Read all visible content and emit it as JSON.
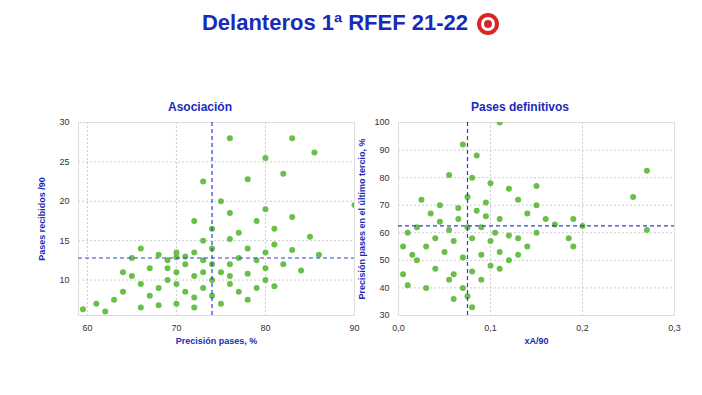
{
  "title": "Delanteros 1ª RFEF 21-22",
  "chart_data": [
    {
      "type": "scatter",
      "title": "Asociación",
      "x_label": "Precisión pases, %",
      "y_label": "Pases recibidos /90",
      "color": "#6abf4b",
      "grid": true,
      "xlim": [
        59,
        90
      ],
      "ylim": [
        5.5,
        30
      ],
      "xticks": [
        60,
        70,
        80,
        90
      ],
      "yticks": [
        10,
        15,
        20,
        25,
        30
      ],
      "x_reference": 74,
      "y_reference": 12.8,
      "x": [
        80,
        83,
        85.5,
        76,
        78,
        90,
        73,
        75,
        82,
        72,
        74,
        76,
        74,
        78,
        80,
        81,
        83,
        86,
        79,
        77,
        72,
        71,
        70,
        68,
        66,
        69,
        70,
        72,
        73,
        74,
        75,
        76,
        78,
        80,
        82,
        84,
        80,
        81,
        79,
        77,
        76,
        74,
        73,
        72,
        71,
        70,
        69,
        68,
        67,
        66,
        65,
        64,
        64,
        63,
        61,
        59.5,
        62,
        66,
        68,
        70,
        72,
        75,
        78,
        76,
        73,
        71,
        67,
        69,
        65,
        74,
        70,
        77,
        79,
        76,
        80,
        81,
        83,
        85,
        73
      ],
      "values": [
        25.5,
        28,
        26.2,
        28,
        22.8,
        19.5,
        22.5,
        20,
        23.5,
        17.5,
        16.5,
        15.2,
        14,
        14,
        13.5,
        14.5,
        13.8,
        13.2,
        12.5,
        12.8,
        13.5,
        13,
        12.9,
        13.2,
        14,
        11.5,
        11,
        10.5,
        11,
        12,
        11,
        10.5,
        10.8,
        11.5,
        12,
        11.2,
        10,
        9.2,
        9,
        8.5,
        9.5,
        8,
        9,
        7.8,
        8.5,
        9.5,
        10,
        9,
        8,
        9.5,
        10.5,
        11,
        8.5,
        7.5,
        7,
        6.3,
        6,
        6.5,
        6.8,
        7,
        6.5,
        7,
        7.5,
        12,
        12.5,
        12,
        11.5,
        12.5,
        12.8,
        10,
        13.5,
        16,
        17.5,
        18.5,
        19,
        16.5,
        18,
        15.5,
        15
      ]
    },
    {
      "type": "scatter",
      "title": "Pases definitivos",
      "x_label": "xA/90",
      "y_label": "Precisión pases en el último tercio, %",
      "color": "#6abf4b",
      "grid": true,
      "xlim": [
        0,
        0.3
      ],
      "ylim": [
        30,
        100
      ],
      "xticks": [
        {
          "value": 0,
          "label": "0,0"
        },
        {
          "value": 0.1,
          "label": "0,1"
        },
        {
          "value": 0.2,
          "label": "0,2"
        },
        {
          "value": 0.3,
          "label": "0,3"
        }
      ],
      "yticks": [
        30,
        40,
        50,
        60,
        70,
        80,
        90,
        100
      ],
      "x_reference": 0.075,
      "y_reference": 62.5,
      "x": [
        0.11,
        0.07,
        0.085,
        0.055,
        0.08,
        0.1,
        0.15,
        0.12,
        0.27,
        0.255,
        0.075,
        0.095,
        0.045,
        0.065,
        0.13,
        0.14,
        0.16,
        0.19,
        0.2,
        0.27,
        0.11,
        0.09,
        0.105,
        0.12,
        0.13,
        0.15,
        0.185,
        0.19,
        0.14,
        0.1,
        0.08,
        0.06,
        0.04,
        0.02,
        0.01,
        0.03,
        0.05,
        0.07,
        0.09,
        0.11,
        0.12,
        0.1,
        0.08,
        0.06,
        0.04,
        0.02,
        0.005,
        0.01,
        0.03,
        0.055,
        0.07,
        0.09,
        0.075,
        0.08,
        0.06,
        0.11,
        0.13,
        0.065,
        0.045,
        0.035,
        0.025,
        0.085,
        0.095,
        0.075,
        0.055,
        0.15,
        0.17,
        0.005,
        0.015
      ],
      "values": [
        100,
        92,
        88,
        81,
        80,
        78,
        77,
        76,
        82.5,
        73,
        73,
        71,
        70,
        69,
        72,
        67,
        65,
        65,
        62.5,
        61,
        65,
        62,
        60,
        59,
        58,
        60,
        58,
        55,
        55,
        57,
        58,
        57,
        58,
        62,
        60,
        55,
        53,
        51,
        52,
        53,
        50,
        48,
        46,
        45,
        47,
        50,
        45,
        41,
        40,
        43,
        40,
        43,
        37,
        33,
        36,
        47,
        52,
        65,
        64,
        67,
        72,
        68,
        66,
        62,
        61,
        70,
        63,
        55,
        52
      ]
    }
  ]
}
